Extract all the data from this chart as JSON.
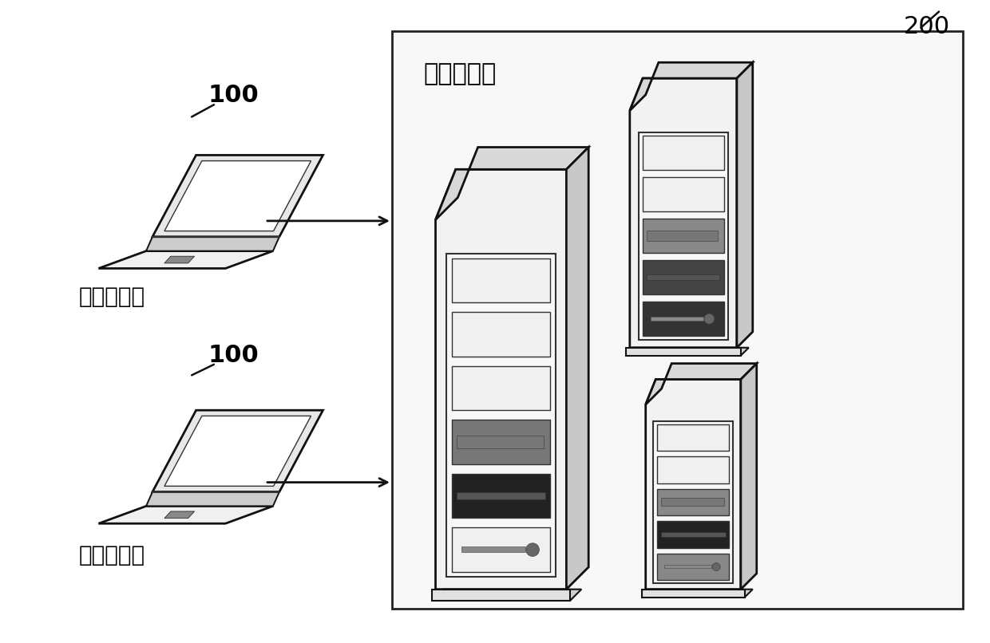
{
  "bg_color": "#ffffff",
  "text_color": "#000000",
  "label_100_1": "100",
  "label_100_2": "100",
  "label_200": "200",
  "label_server": "查询服务端",
  "label_client1": "查询客户端",
  "label_client2": "查询客户端"
}
